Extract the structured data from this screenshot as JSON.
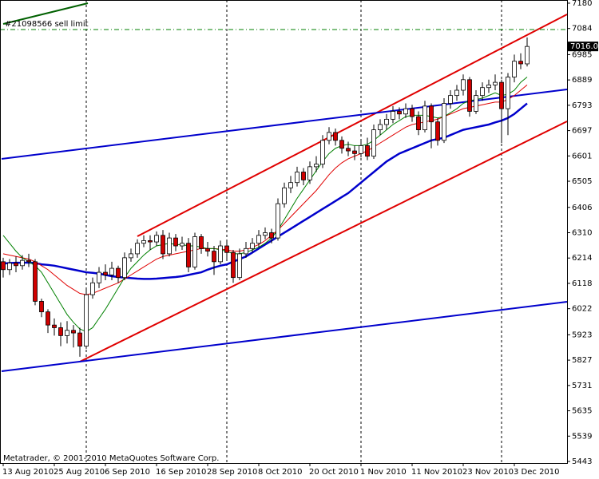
{
  "chart_data": {
    "type": "candlestick",
    "watermark": "Metatrader, © 2001-2010 MetaQuotes Software Corp.",
    "sell_limit": {
      "label": "#21098566 sell limit",
      "price": 7080
    },
    "bid": {
      "value": 7016,
      "label": "7016.0"
    },
    "ylim": [
      5437,
      7192
    ],
    "yticks": [
      7180,
      7084,
      6985,
      6889,
      6793,
      6697,
      6601,
      6505,
      6406,
      6310,
      6214,
      6118,
      6022,
      5923,
      5827,
      5731,
      5635,
      5539,
      5443
    ],
    "categories": [
      "13 Aug 2010",
      null,
      null,
      null,
      null,
      null,
      null,
      null,
      "25 Aug 2010",
      null,
      null,
      null,
      null,
      null,
      null,
      null,
      "6 Sep 2010",
      null,
      null,
      null,
      null,
      null,
      null,
      null,
      "16 Sep 2010",
      null,
      null,
      null,
      null,
      null,
      null,
      null,
      "28 Sep 2010",
      null,
      null,
      null,
      null,
      null,
      null,
      null,
      "8 Oct 2010",
      null,
      null,
      null,
      null,
      null,
      null,
      null,
      "20 Oct 2010",
      null,
      null,
      null,
      null,
      null,
      null,
      null,
      "1 Nov 2010",
      null,
      null,
      null,
      null,
      null,
      null,
      null,
      "11 Nov 2010",
      null,
      null,
      null,
      null,
      null,
      null,
      null,
      "23 Nov 2010",
      null,
      null,
      null,
      null,
      null,
      null,
      null,
      "3 Dec 2010",
      null,
      null
    ],
    "open": [
      6200,
      6170,
      6195,
      6185,
      6205,
      6200,
      6050,
      6010,
      5960,
      5950,
      5920,
      5940,
      5930,
      5880,
      6075,
      6120,
      6160,
      6150,
      6175,
      6140,
      6215,
      6230,
      6270,
      6280,
      6275,
      6300,
      6230,
      6290,
      6260,
      6270,
      6180,
      6295,
      6250,
      6240,
      6200,
      6260,
      6235,
      6140,
      6230,
      6250,
      6270,
      6300,
      6310,
      6290,
      6420,
      6480,
      6500,
      6540,
      6510,
      6560,
      6570,
      6660,
      6690,
      6660,
      6630,
      6620,
      6610,
      6640,
      6600,
      6700,
      6720,
      6740,
      6770,
      6760,
      6780,
      6750,
      6700,
      6790,
      6730,
      6660,
      6800,
      6830,
      6850,
      6890,
      6770,
      6830,
      6860,
      6870,
      6880,
      6780,
      6900,
      6960,
      6950
    ],
    "high": [
      6215,
      6210,
      6220,
      6225,
      6230,
      6210,
      6060,
      6020,
      5985,
      5970,
      5975,
      5960,
      5950,
      6095,
      6140,
      6180,
      6190,
      6200,
      6185,
      6235,
      6250,
      6285,
      6300,
      6300,
      6315,
      6320,
      6310,
      6305,
      6295,
      6290,
      6310,
      6305,
      6275,
      6260,
      6280,
      6275,
      6245,
      6250,
      6275,
      6290,
      6320,
      6330,
      6325,
      6440,
      6500,
      6525,
      6560,
      6555,
      6580,
      6600,
      6680,
      6710,
      6705,
      6675,
      6655,
      6640,
      6665,
      6670,
      6720,
      6740,
      6760,
      6790,
      6785,
      6800,
      6795,
      6770,
      6810,
      6800,
      6745,
      6820,
      6850,
      6870,
      6910,
      6900,
      6850,
      6880,
      6890,
      6910,
      6890,
      6915,
      6985,
      6990,
      7050
    ],
    "low": [
      6140,
      6150,
      6160,
      6170,
      6180,
      6035,
      5990,
      5930,
      5920,
      5880,
      5890,
      5875,
      5840,
      5870,
      6060,
      6100,
      6130,
      6130,
      6120,
      6130,
      6200,
      6215,
      6255,
      6245,
      6260,
      6210,
      6220,
      6240,
      6245,
      6160,
      6170,
      6230,
      6220,
      6150,
      6190,
      6210,
      6120,
      6130,
      6215,
      6235,
      6255,
      6285,
      6270,
      6280,
      6405,
      6460,
      6485,
      6490,
      6495,
      6540,
      6555,
      6645,
      6640,
      6610,
      6600,
      6585,
      6595,
      6585,
      6590,
      6680,
      6700,
      6725,
      6740,
      6745,
      6730,
      6680,
      6690,
      6630,
      6640,
      6650,
      6780,
      6810,
      6830,
      6750,
      6760,
      6810,
      6840,
      6850,
      6650,
      6680,
      6880,
      6930,
      6940
    ],
    "close": [
      6170,
      6195,
      6185,
      6205,
      6200,
      6050,
      6010,
      5960,
      5950,
      5920,
      5940,
      5930,
      5880,
      6075,
      6120,
      6160,
      6150,
      6175,
      6140,
      6215,
      6230,
      6270,
      6280,
      6275,
      6300,
      6230,
      6290,
      6260,
      6270,
      6180,
      6295,
      6250,
      6240,
      6200,
      6260,
      6235,
      6140,
      6230,
      6250,
      6270,
      6300,
      6310,
      6290,
      6420,
      6480,
      6500,
      6540,
      6510,
      6560,
      6570,
      6660,
      6690,
      6660,
      6630,
      6620,
      6610,
      6640,
      6600,
      6700,
      6720,
      6740,
      6770,
      6760,
      6780,
      6750,
      6700,
      6790,
      6730,
      6660,
      6800,
      6830,
      6850,
      6890,
      6770,
      6830,
      6860,
      6870,
      6880,
      6780,
      6900,
      6960,
      6950,
      7016
    ],
    "bull_color": "#ffffff",
    "bear_color": "#d00000",
    "series": [
      {
        "color": "#0000cc",
        "width": 2.5,
        "values": [
          6193,
          6195,
          6196,
          6196,
          6197,
          6195,
          6190,
          6188,
          6185,
          6180,
          6175,
          6170,
          6165,
          6160,
          6158,
          6155,
          6150,
          6145,
          6142,
          6140,
          6138,
          6136,
          6135,
          6135,
          6136,
          6138,
          6140,
          6142,
          6145,
          6150,
          6155,
          6160,
          6170,
          6178,
          6185,
          6190,
          6200,
          6210,
          6220,
          6235,
          6250,
          6265,
          6280,
          6295,
          6310,
          6325,
          6340,
          6355,
          6370,
          6385,
          6400,
          6415,
          6430,
          6445,
          6460,
          6480,
          6500,
          6520,
          6540,
          6560,
          6580,
          6595,
          6610,
          6620,
          6630,
          6640,
          6650,
          6660,
          6665,
          6670,
          6680,
          6690,
          6700,
          6705,
          6710,
          6715,
          6720,
          6728,
          6735,
          6745,
          6760,
          6780,
          6800
        ]
      },
      {
        "color": "#e00000",
        "width": 1,
        "values": [
          6230,
          6225,
          6220,
          6215,
          6210,
          6200,
          6185,
          6170,
          6150,
          6130,
          6110,
          6095,
          6080,
          6075,
          6080,
          6090,
          6100,
          6110,
          6120,
          6135,
          6150,
          6165,
          6180,
          6195,
          6210,
          6220,
          6225,
          6230,
          6235,
          6240,
          6245,
          6250,
          6250,
          6250,
          6248,
          6245,
          6240,
          6240,
          6245,
          6255,
          6265,
          6280,
          6300,
          6320,
          6345,
          6370,
          6395,
          6420,
          6445,
          6470,
          6500,
          6530,
          6555,
          6575,
          6590,
          6600,
          6610,
          6620,
          6635,
          6650,
          6665,
          6680,
          6695,
          6710,
          6720,
          6725,
          6730,
          6735,
          6740,
          6750,
          6760,
          6770,
          6780,
          6785,
          6790,
          6795,
          6800,
          6805,
          6805,
          6815,
          6830,
          6850,
          6870
        ]
      },
      {
        "color": "#008000",
        "width": 1,
        "values": [
          6300,
          6270,
          6240,
          6215,
          6200,
          6185,
          6160,
          6120,
          6080,
          6040,
          6000,
          5970,
          5945,
          5935,
          5950,
          5985,
          6020,
          6060,
          6100,
          6140,
          6175,
          6200,
          6225,
          6245,
          6260,
          6265,
          6270,
          6265,
          6265,
          6260,
          6260,
          6255,
          6250,
          6250,
          6245,
          6240,
          6230,
          6230,
          6235,
          6245,
          6255,
          6270,
          6290,
          6320,
          6360,
          6400,
          6440,
          6475,
          6510,
          6545,
          6580,
          6610,
          6630,
          6640,
          6645,
          6640,
          6640,
          6645,
          6660,
          6680,
          6700,
          6720,
          6735,
          6750,
          6755,
          6755,
          6755,
          6750,
          6745,
          6750,
          6765,
          6780,
          6800,
          6810,
          6815,
          6820,
          6830,
          6840,
          6830,
          6835,
          6850,
          6880,
          6900
        ]
      }
    ]
  }
}
